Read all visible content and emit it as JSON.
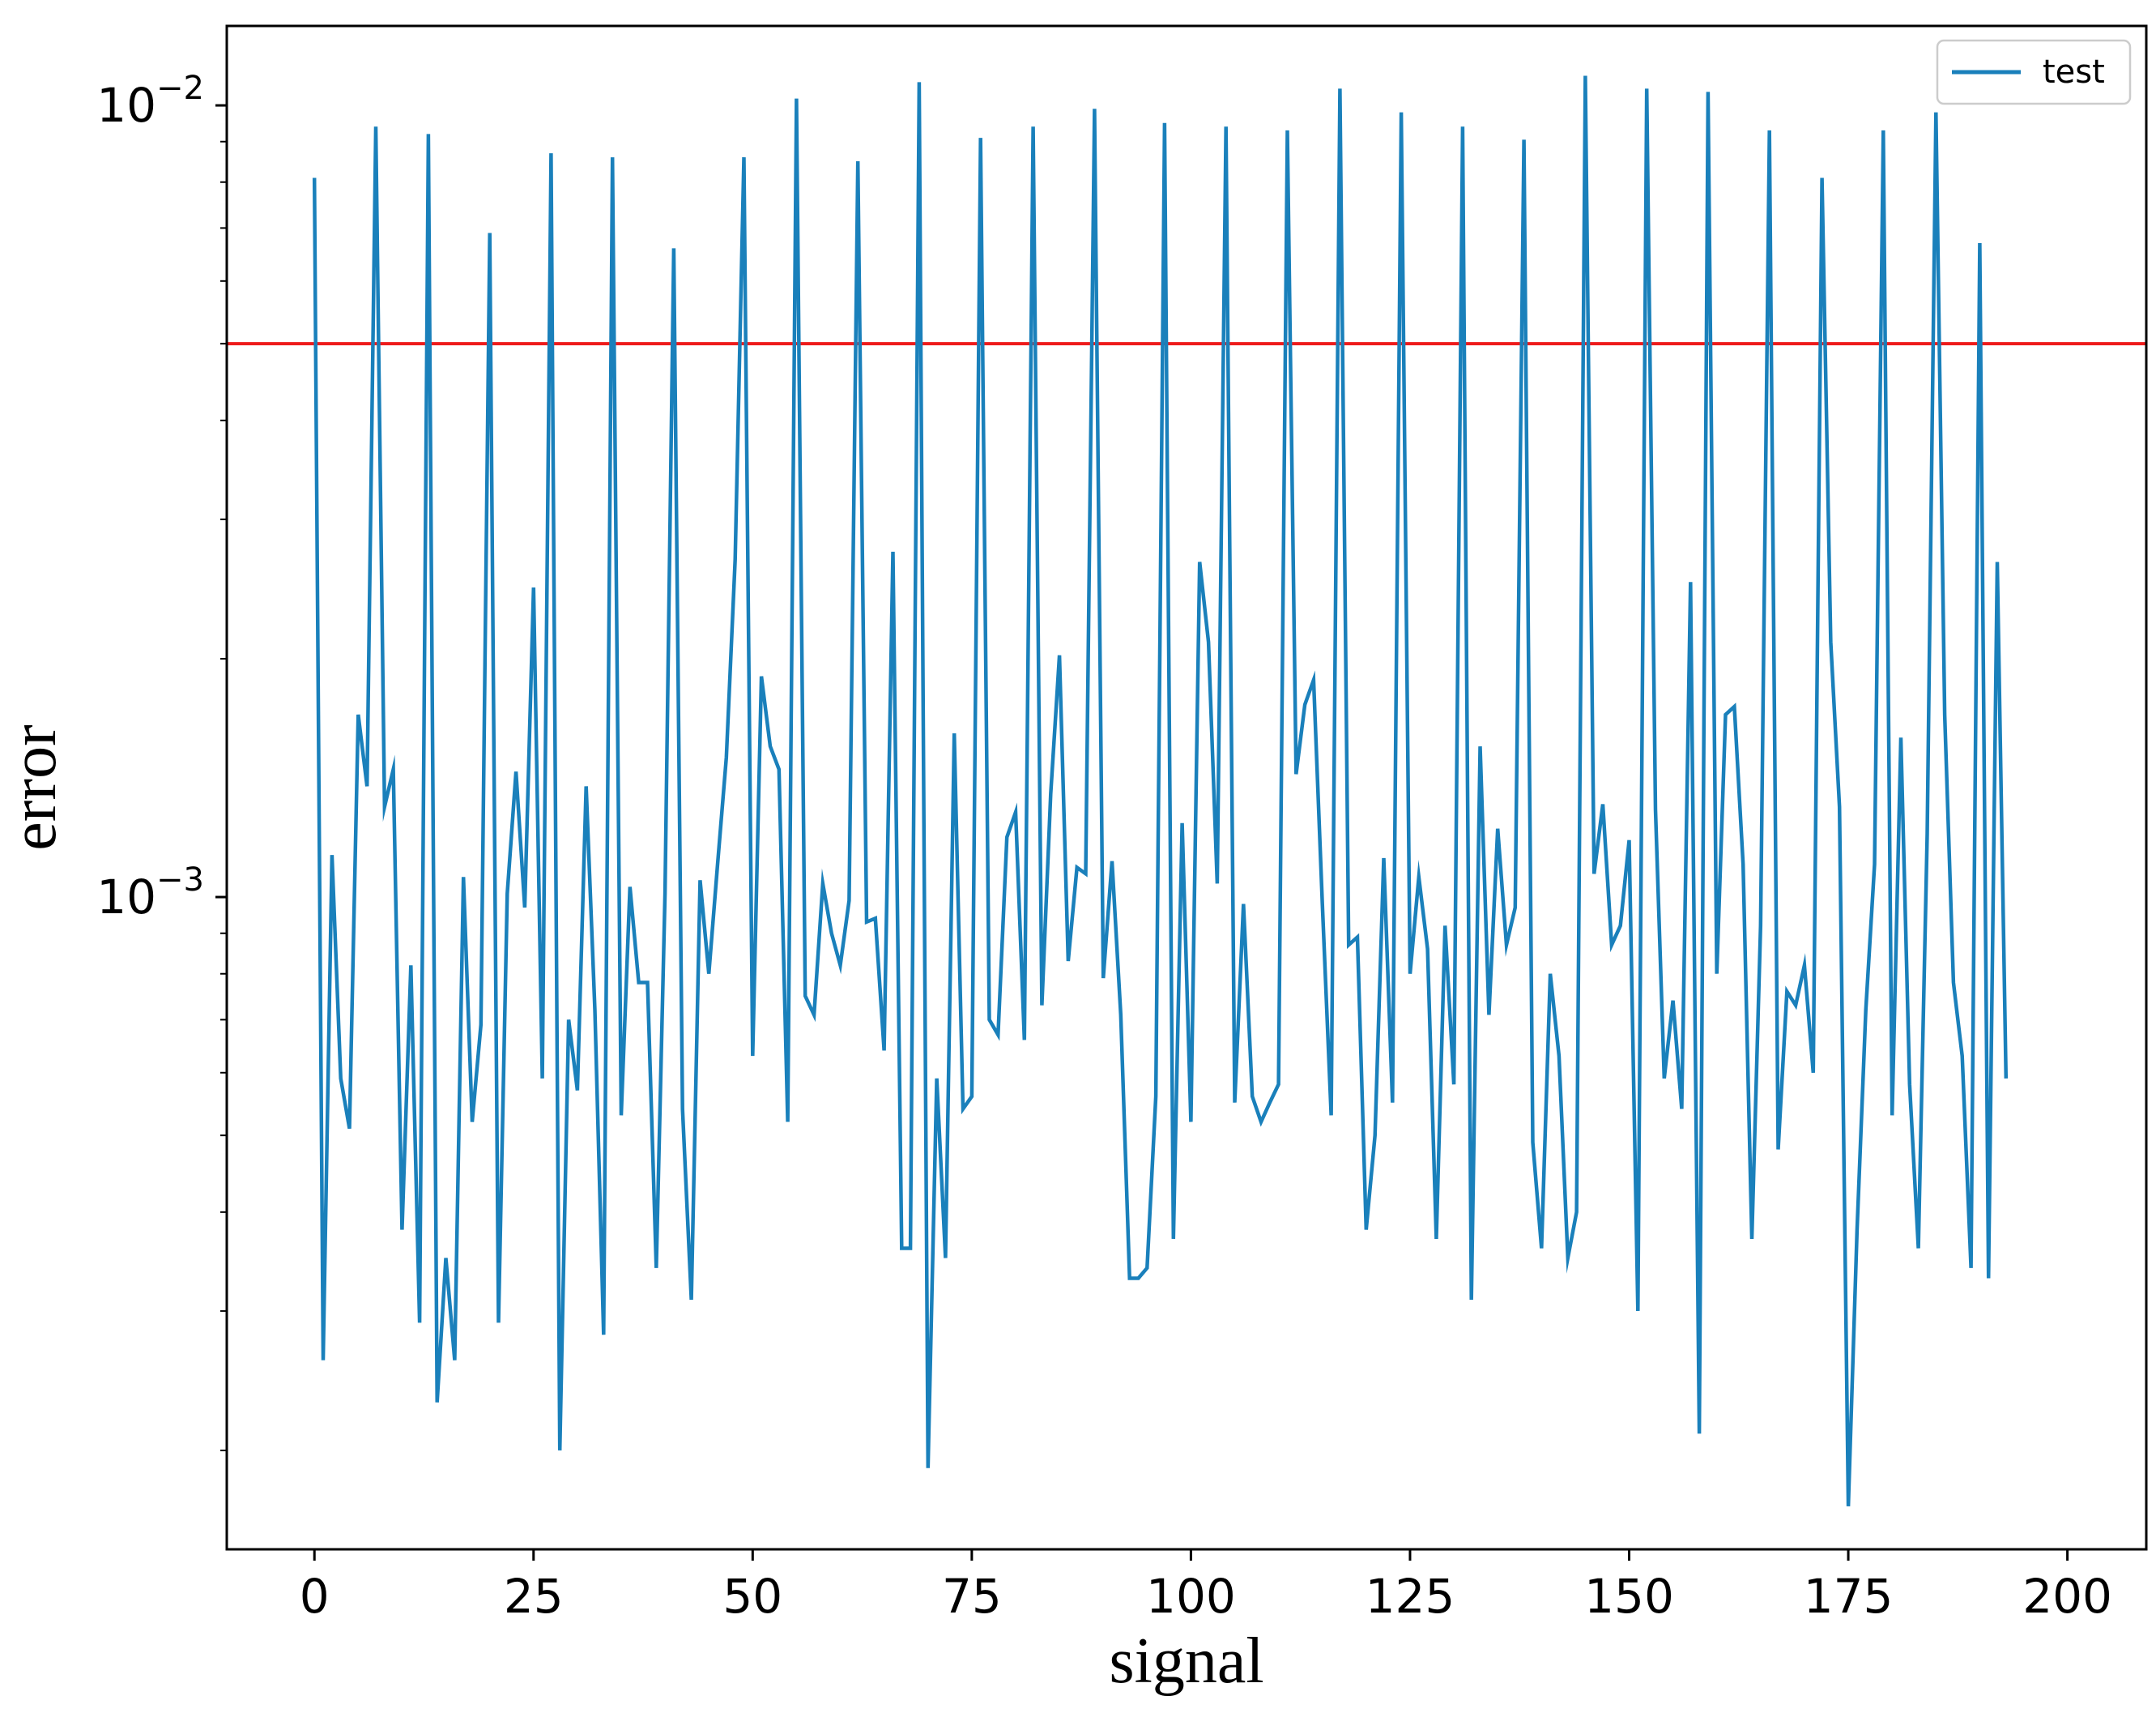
{
  "chart_data": {
    "type": "line",
    "xlabel": "signal",
    "ylabel": "error",
    "yscale": "log",
    "xlim": [
      -10,
      209
    ],
    "ylim": [
      0.00015,
      0.0126
    ],
    "xticks": [
      0,
      25,
      50,
      75,
      100,
      125,
      150,
      175,
      200
    ],
    "xtick_labels": [
      "0",
      "25",
      "50",
      "75",
      "100",
      "125",
      "150",
      "175",
      "200"
    ],
    "yticks": [
      0.001,
      0.01
    ],
    "ytick_labels": [
      {
        "base": "10",
        "exp": "−3"
      },
      {
        "base": "10",
        "exp": "−2"
      }
    ],
    "legend": {
      "position": "top-right",
      "entries": [
        "test"
      ]
    },
    "grid": false,
    "colors": {
      "series": "#1a80bb",
      "threshold": "#ee1c1c",
      "axes": "#000000"
    },
    "threshold": {
      "y": 0.005
    },
    "series": [
      {
        "name": "test",
        "x_start": 0,
        "x_step": 1,
        "values": [
          0.0081,
          0.00026,
          0.00113,
          0.00059,
          0.00051,
          0.0017,
          0.00138,
          0.0094,
          0.0013,
          0.00145,
          0.00038,
          0.00082,
          0.00029,
          0.0092,
          0.00023,
          0.00035,
          0.00026,
          0.00106,
          0.00052,
          0.00069,
          0.0069,
          0.00029,
          0.00101,
          0.00144,
          0.00097,
          0.00246,
          0.00059,
          0.0087,
          0.0002,
          0.0007,
          0.00057,
          0.00138,
          0.00072,
          0.00028,
          0.0086,
          0.00053,
          0.00103,
          0.00078,
          0.00078,
          0.00034,
          0.00101,
          0.0066,
          0.00054,
          0.00031,
          0.00105,
          0.0008,
          0.0011,
          0.0015,
          0.00267,
          0.0086,
          0.00063,
          0.0019,
          0.00155,
          0.00145,
          0.00052,
          0.0102,
          0.00075,
          0.00071,
          0.00104,
          0.0009,
          0.00082,
          0.00099,
          0.0085,
          0.00093,
          0.00094,
          0.00064,
          0.00273,
          0.00036,
          0.00036,
          0.0107,
          0.00019,
          0.00059,
          0.00035,
          0.00161,
          0.00054,
          0.00056,
          0.0091,
          0.0007,
          0.00067,
          0.00119,
          0.00128,
          0.00066,
          0.0094,
          0.00073,
          0.00135,
          0.00202,
          0.00083,
          0.00109,
          0.00107,
          0.0099,
          0.00079,
          0.00111,
          0.00071,
          0.00033,
          0.00033,
          0.00034,
          0.00056,
          0.0095,
          0.00037,
          0.00124,
          0.00052,
          0.00265,
          0.0021,
          0.00104,
          0.0094,
          0.00055,
          0.00098,
          0.00056,
          0.00052,
          0.00055,
          0.00058,
          0.0093,
          0.00143,
          0.00175,
          0.00188,
          0.00098,
          0.00053,
          0.0105,
          0.00087,
          0.00089,
          0.00038,
          0.0005,
          0.00112,
          0.00055,
          0.0098,
          0.0008,
          0.00106,
          0.00086,
          0.00037,
          0.00092,
          0.00058,
          0.0094,
          0.00031,
          0.00155,
          0.00071,
          0.00122,
          0.00087,
          0.00097,
          0.00905,
          0.00049,
          0.00036,
          0.0008,
          0.00063,
          0.00035,
          0.0004,
          0.0109,
          0.00107,
          0.00131,
          0.00087,
          0.00092,
          0.00118,
          0.0003,
          0.0105,
          0.00129,
          0.00059,
          0.00074,
          0.00054,
          0.0025,
          0.00021,
          0.0104,
          0.0008,
          0.0017,
          0.00174,
          0.0011,
          0.00037,
          0.00092,
          0.0093,
          0.00048,
          0.00076,
          0.00073,
          0.00082,
          0.0006,
          0.0081,
          0.0021,
          0.0013,
          0.00017,
          0.00038,
          0.00072,
          0.0011,
          0.0093,
          0.00053,
          0.00159,
          0.00058,
          0.00036,
          0.0012,
          0.0098,
          0.0017,
          0.00078,
          0.00063,
          0.00034,
          0.0067,
          0.00033,
          0.00265,
          0.00059
        ]
      }
    ]
  }
}
